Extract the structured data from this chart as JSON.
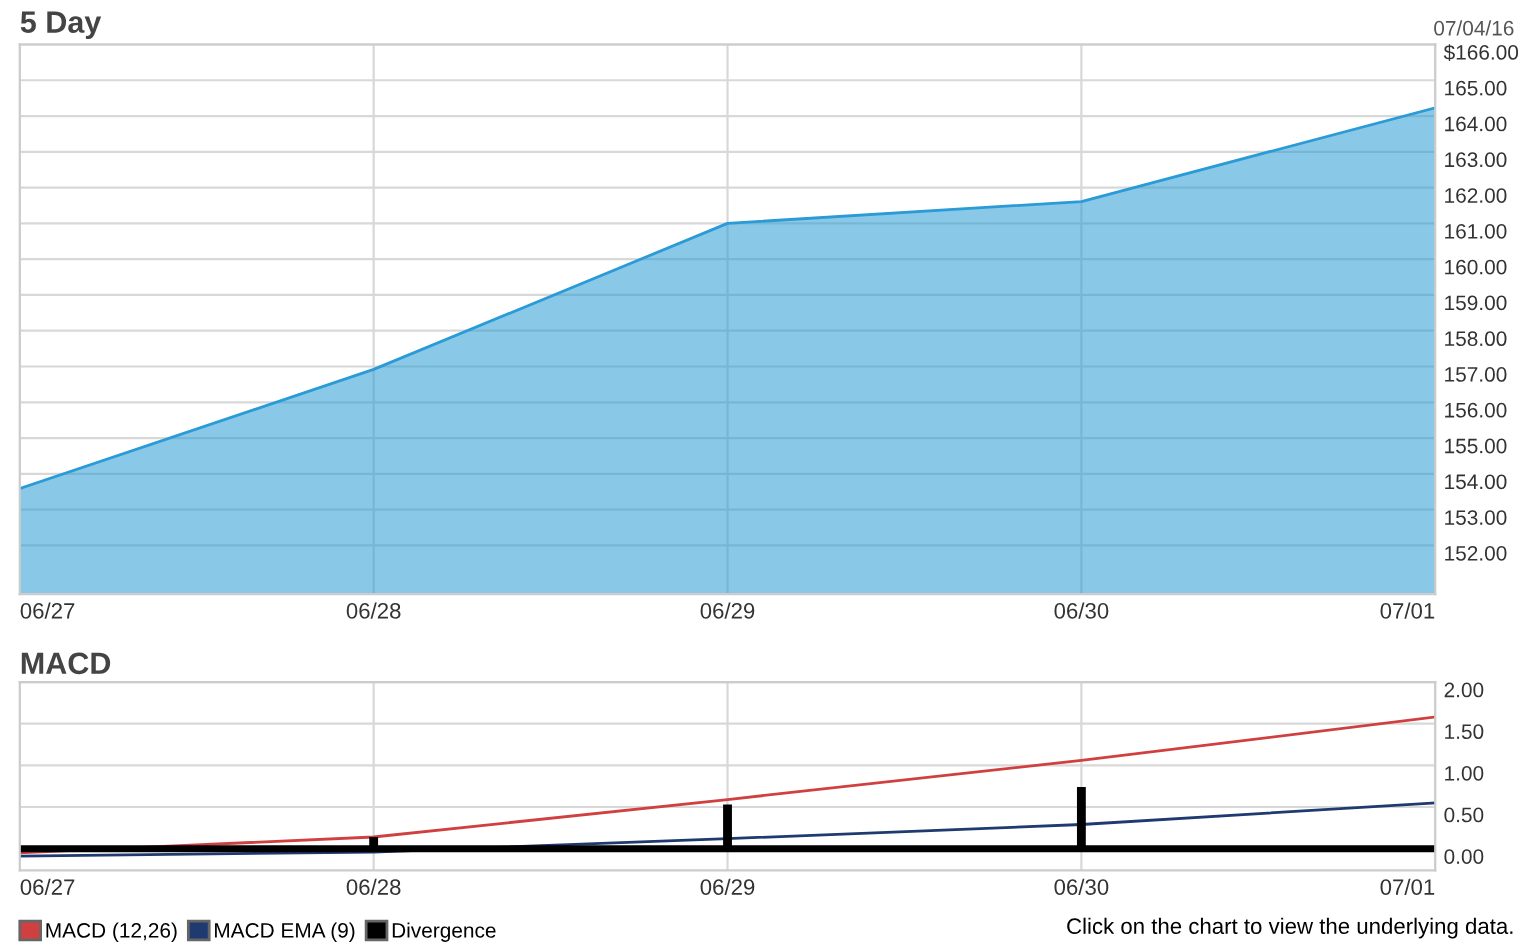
{
  "chart_data": [
    {
      "type": "area",
      "title": "5 Day",
      "annotations": [
        "07/04/16"
      ],
      "categories": [
        "06/27",
        "06/28",
        "06/29",
        "06/30",
        "07/01"
      ],
      "series": [
        {
          "color": "#2a9bd6",
          "values": [
            153.59,
            156.92,
            161.0,
            161.61,
            164.23
          ]
        }
      ],
      "ylim": [
        150.64,
        166
      ],
      "yticks": [
        {
          "value": 166,
          "label": "$166.00"
        },
        {
          "value": 165,
          "label": "165.00"
        },
        {
          "value": 164,
          "label": "164.00"
        },
        {
          "value": 163,
          "label": "163.00"
        },
        {
          "value": 162,
          "label": "162.00"
        },
        {
          "value": 161,
          "label": "161.00"
        },
        {
          "value": 160,
          "label": "160.00"
        },
        {
          "value": 159,
          "label": "159.00"
        },
        {
          "value": 158,
          "label": "158.00"
        },
        {
          "value": 157,
          "label": "157.00"
        },
        {
          "value": 156,
          "label": "156.00"
        },
        {
          "value": 155,
          "label": "155.00"
        },
        {
          "value": 154,
          "label": "154.00"
        },
        {
          "value": 153,
          "label": "153.00"
        },
        {
          "value": 152,
          "label": "152.00"
        }
      ],
      "grid": true
    },
    {
      "type": "line",
      "title": "MACD",
      "annotations": [
        "Click on the chart to view the underlying data."
      ],
      "categories": [
        "06/27",
        "06/28",
        "06/29",
        "06/30",
        "07/01"
      ],
      "series": [
        {
          "name": "MACD (12,26)",
          "color": "#d04040",
          "values": [
            -0.05,
            0.14,
            0.59,
            1.06,
            1.58
          ]
        },
        {
          "name": "MACD EMA (9)",
          "color": "#1f3a70",
          "values": [
            -0.09,
            -0.04,
            0.12,
            0.29,
            0.55
          ]
        },
        {
          "name": "Divergence",
          "type": "bar",
          "color": "#000000",
          "values": [
            0,
            0.14,
            0.53,
            0.74,
            null
          ]
        }
      ],
      "ref_lines": [
        {
          "axis": "y",
          "value": 0,
          "label": null,
          "color": "#000000"
        }
      ],
      "ylim": [
        -0.26,
        2.0
      ],
      "yticks": [
        {
          "value": 2,
          "label": "2.00"
        },
        {
          "value": 1.5,
          "label": "1.50"
        },
        {
          "value": 1,
          "label": "1.00"
        },
        {
          "value": 0.5,
          "label": "0.50"
        },
        {
          "value": 0,
          "label": "0.00"
        }
      ],
      "grid": true,
      "legend": "bottom left"
    }
  ]
}
